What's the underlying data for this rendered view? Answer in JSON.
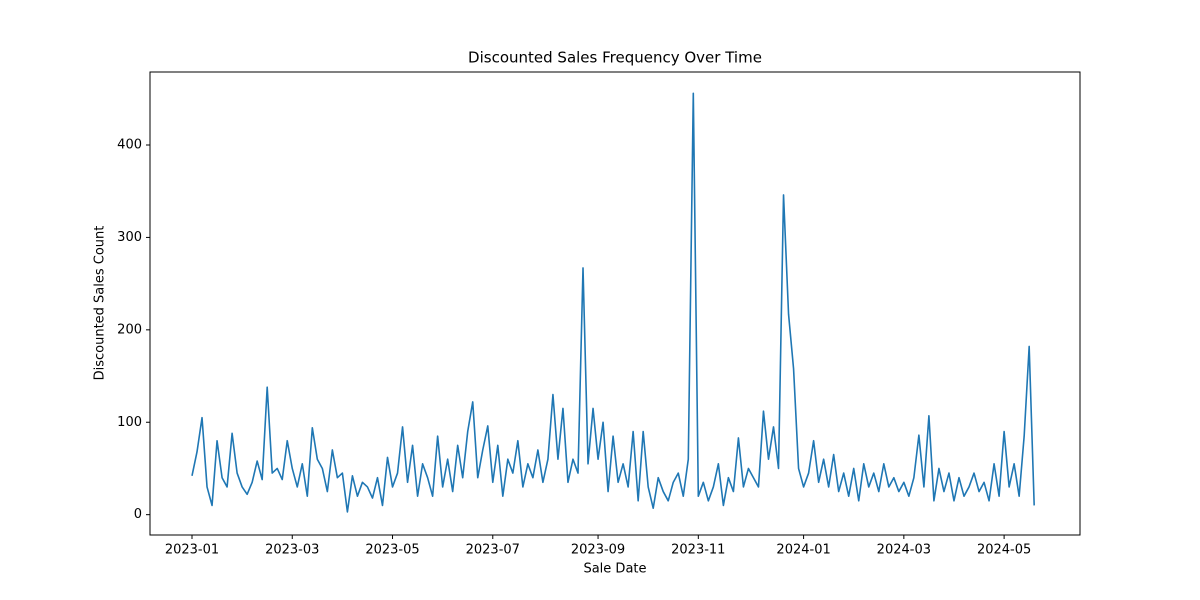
{
  "chart_data": {
    "type": "line",
    "title": "Discounted Sales Frequency Over Time",
    "xlabel": "Sale Date",
    "ylabel": "Discounted Sales Count",
    "color": "#1f77b4",
    "categories": [
      "2023-01",
      null,
      null,
      null,
      null,
      null,
      null,
      null,
      null,
      null,
      null,
      null,
      null,
      null,
      null,
      null,
      null,
      null,
      null,
      null,
      "2023-03",
      null,
      null,
      null,
      null,
      null,
      null,
      null,
      null,
      null,
      null,
      null,
      null,
      null,
      null,
      null,
      null,
      null,
      null,
      null,
      "2023-05",
      null,
      null,
      null,
      null,
      null,
      null,
      null,
      null,
      null,
      null,
      null,
      null,
      null,
      null,
      null,
      null,
      null,
      null,
      null,
      "2023-07",
      null,
      null,
      null,
      null,
      null,
      null,
      null,
      null,
      null,
      null,
      null,
      null,
      null,
      null,
      null,
      null,
      null,
      null,
      null,
      null,
      "2023-09",
      null,
      null,
      null,
      null,
      null,
      null,
      null,
      null,
      null,
      null,
      null,
      null,
      null,
      null,
      null,
      null,
      null,
      null,
      null,
      "2023-11",
      null,
      null,
      null,
      null,
      null,
      null,
      null,
      null,
      null,
      null,
      null,
      null,
      null,
      null,
      null,
      null,
      null,
      null,
      null,
      null,
      "2024-01",
      null,
      null,
      null,
      null,
      null,
      null,
      null,
      null,
      null,
      null,
      null,
      null,
      null,
      null,
      null,
      null,
      null,
      null,
      null,
      "2024-03",
      null,
      null,
      null,
      null,
      null,
      null,
      null,
      null,
      null,
      null,
      null,
      null,
      null,
      null,
      null,
      null,
      null,
      null,
      null,
      "2024-05",
      null,
      null,
      null,
      null,
      null,
      null
    ],
    "values": [
      42,
      68,
      105,
      30,
      10,
      80,
      40,
      30,
      88,
      45,
      30,
      22,
      35,
      58,
      38,
      138,
      45,
      50,
      38,
      80,
      50,
      30,
      55,
      20,
      94,
      60,
      50,
      25,
      70,
      40,
      45,
      3,
      42,
      20,
      35,
      30,
      18,
      40,
      10,
      62,
      30,
      45,
      95,
      35,
      75,
      20,
      55,
      40,
      20,
      85,
      30,
      60,
      25,
      75,
      40,
      90,
      122,
      40,
      70,
      96,
      35,
      75,
      20,
      60,
      45,
      80,
      30,
      55,
      40,
      70,
      35,
      60,
      130,
      60,
      115,
      35,
      60,
      45,
      267,
      55,
      115,
      60,
      100,
      25,
      85,
      35,
      55,
      30,
      90,
      15,
      90,
      30,
      7,
      40,
      25,
      15,
      35,
      45,
      20,
      60,
      456,
      20,
      35,
      15,
      30,
      55,
      10,
      40,
      25,
      83,
      30,
      50,
      40,
      30,
      112,
      60,
      95,
      50,
      346,
      217,
      158,
      50,
      30,
      45,
      80,
      35,
      60,
      30,
      65,
      25,
      45,
      20,
      50,
      15,
      55,
      30,
      45,
      25,
      55,
      30,
      40,
      25,
      35,
      20,
      40,
      86,
      30,
      107,
      15,
      50,
      25,
      45,
      15,
      40,
      20,
      30,
      45,
      25,
      35,
      15,
      55,
      20,
      90,
      30,
      55,
      20,
      85,
      182,
      10
    ],
    "ylim": [
      -22,
      479
    ],
    "yticks": [
      0,
      100,
      200,
      300,
      400
    ]
  }
}
